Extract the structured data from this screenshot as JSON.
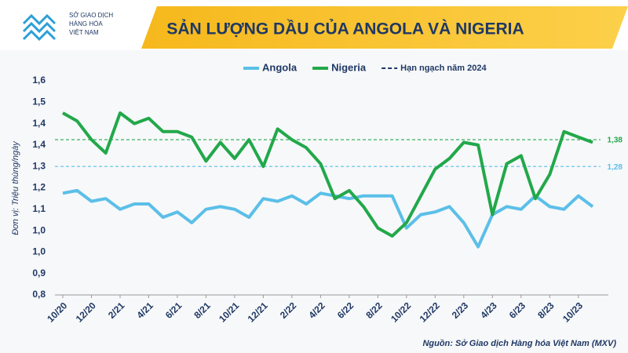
{
  "header": {
    "logo_lines": [
      "SỞ GIAO DỊCH",
      "HÀNG HÓA",
      "VIỆT NAM"
    ]
  },
  "chart_data": {
    "type": "line",
    "title": "SẢN LƯỢNG DẦU CỦA ANGOLA VÀ NIGERIA",
    "y_label": "Đơn vị: Triệu thùng/ngày",
    "source": "Nguồn: Sở Giao dịch Hàng hóa Việt Nam (MXV)",
    "categories": [
      "10/20",
      null,
      "12/20",
      null,
      "2/21",
      null,
      "4/21",
      null,
      "6/21",
      null,
      "8/21",
      null,
      "10/21",
      null,
      "12/21",
      null,
      "2/22",
      null,
      "4/22",
      null,
      "6/22",
      null,
      "8/22",
      null,
      "10/22",
      null,
      "12/22",
      null,
      "2/23",
      null,
      "4/23",
      null,
      "6/23",
      null,
      "8/23",
      null,
      "10/23",
      null
    ],
    "series": [
      {
        "name": "Angola",
        "color": "#5bbfe8",
        "values": [
          1.18,
          1.19,
          1.15,
          1.16,
          1.12,
          1.14,
          1.14,
          1.09,
          1.11,
          1.07,
          1.12,
          1.13,
          1.12,
          1.09,
          1.16,
          1.15,
          1.17,
          1.14,
          1.18,
          1.17,
          1.16,
          1.17,
          1.17,
          1.17,
          1.05,
          1.1,
          1.11,
          1.13,
          1.07,
          0.98,
          1.1,
          1.13,
          1.12,
          1.17,
          1.13,
          1.12,
          1.17,
          1.13
        ]
      },
      {
        "name": "Nigeria",
        "color": "#22a84a",
        "values": [
          1.48,
          1.45,
          1.38,
          1.33,
          1.48,
          1.44,
          1.46,
          1.41,
          1.41,
          1.39,
          1.3,
          1.37,
          1.31,
          1.38,
          1.28,
          1.42,
          1.38,
          1.35,
          1.29,
          1.16,
          1.19,
          1.13,
          1.05,
          1.02,
          1.07,
          1.17,
          1.27,
          1.31,
          1.37,
          1.36,
          1.1,
          1.29,
          1.32,
          1.16,
          1.25,
          1.41,
          1.39,
          1.37
        ]
      }
    ],
    "quota_legend": {
      "name": "Hạn ngạch năm 2024",
      "color": "#1f3864"
    },
    "reference_lines": [
      {
        "value": 1.38,
        "label": "1,38",
        "color": "#22a84a"
      },
      {
        "value": 1.28,
        "label": "1,28",
        "color": "#5bbfe8"
      }
    ],
    "ylim": [
      0.8,
      1.6
    ],
    "yticks": [
      {
        "value": 0.8,
        "label": "0,8"
      },
      {
        "value": 0.88,
        "label": "0,9"
      },
      {
        "value": 0.96,
        "label": "1,0"
      },
      {
        "value": 1.04,
        "label": "1,0"
      },
      {
        "value": 1.12,
        "label": "1,1"
      },
      {
        "value": 1.2,
        "label": "1,2"
      },
      {
        "value": 1.28,
        "label": "1,3"
      },
      {
        "value": 1.36,
        "label": "1,4"
      },
      {
        "value": 1.44,
        "label": "1,4"
      },
      {
        "value": 1.52,
        "label": "1,5"
      },
      {
        "value": 1.6,
        "label": "1,6"
      }
    ],
    "grid": false
  }
}
